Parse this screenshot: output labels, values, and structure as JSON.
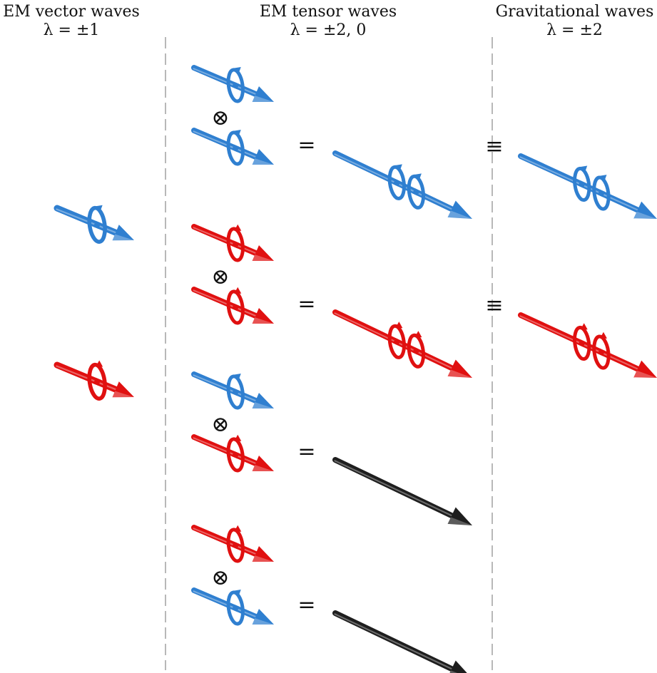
{
  "columns": [
    {
      "title": "EM vector waves",
      "helicity": "λ = ±1"
    },
    {
      "title": "EM tensor waves",
      "helicity": "λ = ±2, 0"
    },
    {
      "title": "Gravitational waves",
      "helicity": "λ = ±2"
    }
  ],
  "symbols": {
    "tensor_product": "⊗",
    "equals": "=",
    "equivalent": "≡"
  },
  "colors": {
    "positive_helicity": "#2f7fd0",
    "negative_helicity": "#e01010",
    "zero_helicity": "#1e1e1e",
    "divider": "#9a9a9a",
    "text": "#111111"
  },
  "products": [
    {
      "first": "positive",
      "second": "positive",
      "result": "positive",
      "result_helicity": "+2",
      "graviton_equivalent": true
    },
    {
      "first": "negative",
      "second": "negative",
      "result": "negative",
      "result_helicity": "-2",
      "graviton_equivalent": true
    },
    {
      "first": "positive",
      "second": "negative",
      "result": "zero",
      "result_helicity": "0",
      "graviton_equivalent": false
    },
    {
      "first": "negative",
      "second": "positive",
      "result": "zero",
      "result_helicity": "0",
      "graviton_equivalent": false
    }
  ],
  "vector_waves": [
    "positive",
    "negative"
  ]
}
